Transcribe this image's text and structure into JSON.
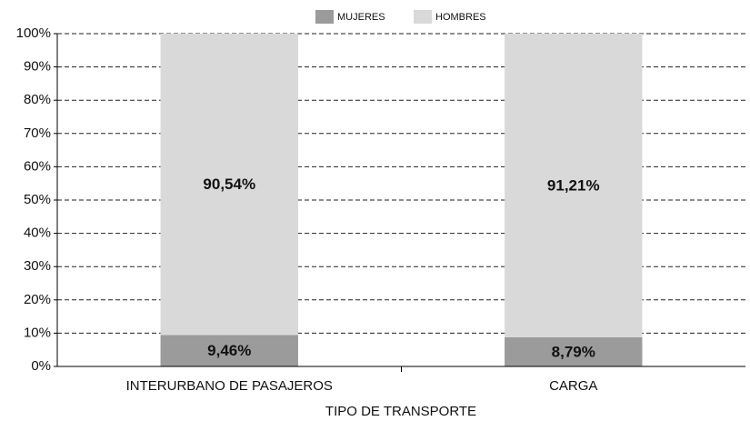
{
  "chart_data": {
    "type": "stacked_bar",
    "categories": [
      "INTERURBANO DE PASAJEROS",
      "CARGA"
    ],
    "series": [
      {
        "name": "MUJERES",
        "color": "#9b9b9b",
        "values": [
          9.46,
          8.79
        ],
        "value_labels": [
          "9,46%",
          "8,79%"
        ]
      },
      {
        "name": "HOMBRES",
        "color": "#d9d9d9",
        "values": [
          90.54,
          91.21
        ],
        "value_labels": [
          "90,54%",
          "91,21%"
        ]
      }
    ],
    "xlabel": "TIPO DE TRANSPORTE",
    "ylim": [
      0,
      100
    ],
    "yticks": [
      {
        "value": 0,
        "label": "0%"
      },
      {
        "value": 10,
        "label": "10%"
      },
      {
        "value": 20,
        "label": "20%"
      },
      {
        "value": 30,
        "label": "30%"
      },
      {
        "value": 40,
        "label": "40%"
      },
      {
        "value": 50,
        "label": "50%"
      },
      {
        "value": 60,
        "label": "60%"
      },
      {
        "value": 70,
        "label": "70%"
      },
      {
        "value": 80,
        "label": "80%"
      },
      {
        "value": 90,
        "label": "90%"
      },
      {
        "value": 100,
        "label": "100%"
      }
    ],
    "grid": true,
    "legend": "top"
  }
}
